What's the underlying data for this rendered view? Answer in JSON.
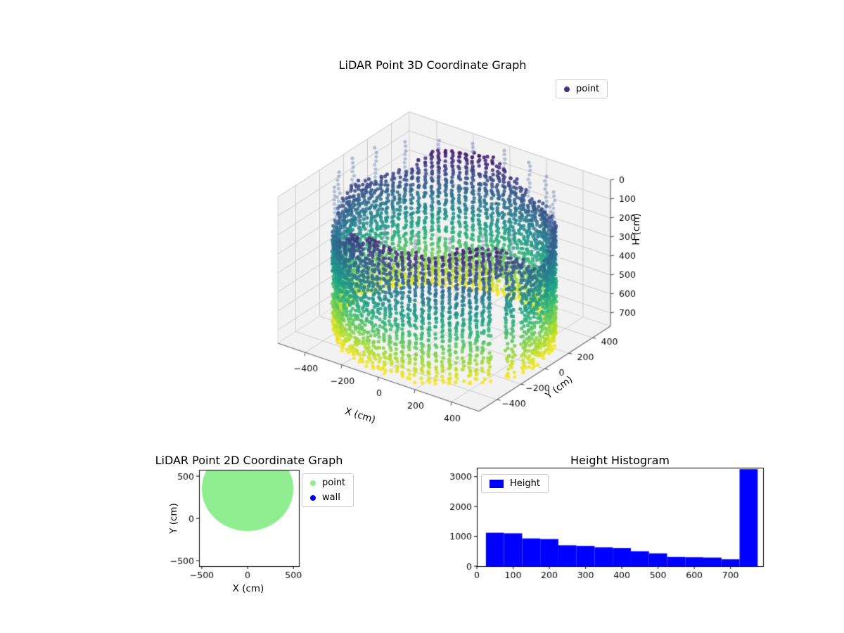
{
  "figure": {
    "background": "#ffffff"
  },
  "chart_data": [
    {
      "id": "lidar-3d",
      "type": "scatter3d",
      "title": "LiDAR Point 3D Coordinate Graph",
      "xlabel": "X (cm)",
      "ylabel": "Y (cm)",
      "zlabel": "H (cm)",
      "xticks": [
        -400,
        -200,
        0,
        200,
        400
      ],
      "yticks": [
        -400,
        -200,
        0,
        200,
        400
      ],
      "zticks": [
        0,
        100,
        200,
        300,
        400,
        500,
        600,
        700
      ],
      "xlim": [
        -550,
        550
      ],
      "ylim": [
        -550,
        550
      ],
      "zlim": [
        0,
        770
      ],
      "z_axis_inverted": true,
      "colormap": "viridis",
      "legend": [
        {
          "label": "point",
          "color": "#46327e"
        }
      ],
      "point_cloud": {
        "shape": "cylindrical wall of scatter points",
        "radius_cm": 500,
        "height_cm": 770,
        "columns": 100,
        "wall_top_band_cm": [
          60,
          280
        ],
        "sparse_top_columns_every": 5,
        "color_rule": "points colored by height: dark purple near H=0 to yellow near H=770; translucent light-blue dotted columns above the wall rim"
      }
    },
    {
      "id": "lidar-2d",
      "type": "scatter",
      "title": "LiDAR Point 2D Coordinate Graph",
      "xlabel": "X (cm)",
      "ylabel": "Y (cm)",
      "xticks": [
        -500,
        0,
        500
      ],
      "yticks": [
        -500,
        0,
        500
      ],
      "xlim": [
        -530,
        560
      ],
      "ylim": [
        -565,
        575
      ],
      "legend": [
        {
          "label": "point",
          "color": "#90ee90"
        },
        {
          "label": "wall",
          "color": "#0000ff"
        }
      ],
      "series": [
        {
          "name": "point",
          "marker_color": "#90ee90",
          "region": {
            "shape": "disc",
            "cx": 0,
            "cy": 350,
            "r": 500
          }
        },
        {
          "name": "wall",
          "marker_color": "#0000ff",
          "region": null
        }
      ]
    },
    {
      "id": "height-histogram",
      "type": "bar",
      "title": "Height Histogram",
      "xlabel": "",
      "ylabel": "",
      "xticks": [
        0,
        100,
        200,
        300,
        400,
        500,
        600,
        700
      ],
      "yticks": [
        0,
        1000,
        2000,
        3000
      ],
      "xlim": [
        0,
        790
      ],
      "ylim": [
        0,
        3300
      ],
      "bar_color": "#0000ff",
      "legend": [
        {
          "label": "Height",
          "color": "#0000ff"
        }
      ],
      "bin_edges": [
        25,
        75,
        125,
        175,
        225,
        275,
        325,
        375,
        425,
        475,
        525,
        575,
        625,
        675,
        725,
        775
      ],
      "counts": [
        1120,
        1100,
        930,
        910,
        700,
        680,
        630,
        610,
        500,
        430,
        310,
        300,
        290,
        230,
        3250
      ]
    }
  ]
}
